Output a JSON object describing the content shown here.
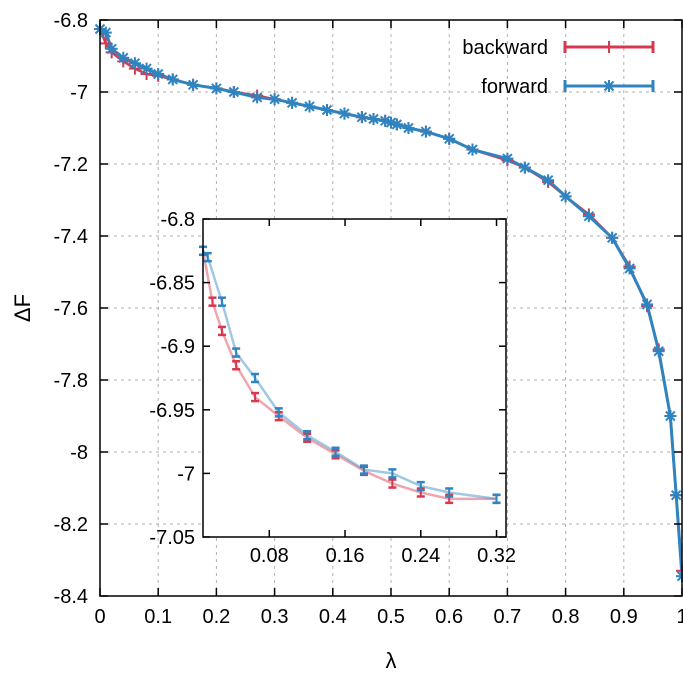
{
  "chart_data": [
    {
      "type": "line",
      "xlabel": "λ",
      "ylabel": "ΔF",
      "xlim": [
        0,
        1
      ],
      "ylim": [
        -8.4,
        -6.8
      ],
      "xticks": [
        "0",
        "0.1",
        "0.2",
        "0.3",
        "0.4",
        "0.5",
        "0.6",
        "0.7",
        "0.8",
        "0.9",
        "1"
      ],
      "yticks": [
        "-6.8",
        "-7",
        "-7.2",
        "-7.4",
        "-7.6",
        "-7.8",
        "-8",
        "-8.2",
        "-8.4"
      ],
      "grid": true,
      "legend_position": "top-right",
      "series": [
        {
          "name": "backward",
          "color": "#d6394f",
          "marker": "plus",
          "x": [
            0,
            0.01,
            0.02,
            0.04,
            0.06,
            0.08,
            0.1,
            0.125,
            0.16,
            0.2,
            0.23,
            0.27,
            0.3,
            0.33,
            0.36,
            0.39,
            0.42,
            0.45,
            0.47,
            0.49,
            0.5,
            0.51,
            0.53,
            0.56,
            0.6,
            0.64,
            0.7,
            0.73,
            0.77,
            0.8,
            0.84,
            0.88,
            0.91,
            0.94,
            0.96,
            0.98,
            0.99,
            1.0
          ],
          "y": [
            -6.825,
            -6.865,
            -6.89,
            -6.915,
            -6.935,
            -6.95,
            -6.955,
            -6.965,
            -6.98,
            -6.99,
            -7.0,
            -7.01,
            -7.02,
            -7.03,
            -7.04,
            -7.05,
            -7.06,
            -7.07,
            -7.075,
            -7.08,
            -7.085,
            -7.09,
            -7.1,
            -7.11,
            -7.13,
            -7.16,
            -7.19,
            -7.21,
            -7.25,
            -7.29,
            -7.34,
            -7.405,
            -7.485,
            -7.595,
            -7.715,
            -7.9,
            -8.12,
            -8.33
          ]
        },
        {
          "name": "forward",
          "color": "#2f84c0",
          "marker": "star",
          "x": [
            0,
            0.01,
            0.02,
            0.04,
            0.06,
            0.08,
            0.1,
            0.125,
            0.16,
            0.2,
            0.23,
            0.27,
            0.3,
            0.33,
            0.36,
            0.39,
            0.42,
            0.45,
            0.47,
            0.49,
            0.5,
            0.51,
            0.53,
            0.56,
            0.6,
            0.64,
            0.7,
            0.73,
            0.77,
            0.8,
            0.84,
            0.88,
            0.91,
            0.94,
            0.96,
            0.98,
            0.99,
            1.0
          ],
          "y": [
            -6.825,
            -6.835,
            -6.88,
            -6.905,
            -6.92,
            -6.935,
            -6.95,
            -6.965,
            -6.98,
            -6.99,
            -7.0,
            -7.015,
            -7.02,
            -7.03,
            -7.04,
            -7.05,
            -7.06,
            -7.07,
            -7.075,
            -7.08,
            -7.085,
            -7.09,
            -7.1,
            -7.11,
            -7.13,
            -7.16,
            -7.185,
            -7.21,
            -7.245,
            -7.29,
            -7.345,
            -7.405,
            -7.49,
            -7.59,
            -7.72,
            -7.9,
            -8.12,
            -8.345
          ]
        }
      ]
    },
    {
      "type": "line",
      "title": "",
      "xlabel": "",
      "ylabel": "",
      "xlim": [
        0.01,
        0.33
      ],
      "ylim": [
        -7.05,
        -6.8
      ],
      "xticks": [
        "0.08",
        "0.16",
        "0.24",
        "0.32"
      ],
      "yticks": [
        "-6.8",
        "-6.85",
        "-6.9",
        "-6.95",
        "-7",
        "-7.05"
      ],
      "series": [
        {
          "name": "backward",
          "color": "#d6394f",
          "x": [
            0.01,
            0.02,
            0.03,
            0.045,
            0.065,
            0.09,
            0.12,
            0.15,
            0.18,
            0.21,
            0.24,
            0.27,
            0.32
          ],
          "y": [
            -6.825,
            -6.865,
            -6.888,
            -6.915,
            -6.94,
            -6.955,
            -6.972,
            -6.985,
            -6.998,
            -7.008,
            -7.015,
            -7.02,
            -7.02
          ]
        },
        {
          "name": "forward",
          "color": "#2f84c0",
          "x": [
            0.01,
            0.015,
            0.03,
            0.045,
            0.065,
            0.09,
            0.12,
            0.15,
            0.18,
            0.21,
            0.24,
            0.27,
            0.32
          ],
          "y": [
            -6.825,
            -6.83,
            -6.865,
            -6.905,
            -6.925,
            -6.952,
            -6.97,
            -6.983,
            -6.997,
            -7.0,
            -7.01,
            -7.015,
            -7.02
          ]
        }
      ]
    }
  ]
}
